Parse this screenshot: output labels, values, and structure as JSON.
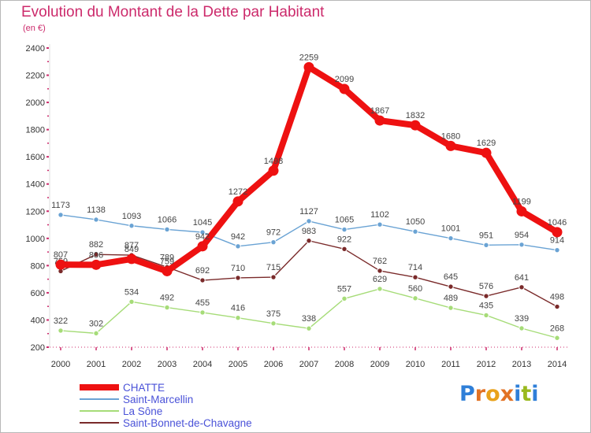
{
  "title": "Evolution du Montant de la Dette par Habitant",
  "subtitle": "(en €)",
  "brand": {
    "letters": [
      "P",
      "r",
      "o",
      "x",
      "i",
      "t",
      "i"
    ],
    "colors": [
      "#2f7fd8",
      "#e27224",
      "#e9a21b",
      "#e27224",
      "#2f7fd8",
      "#9ab91e",
      "#2f7fd8"
    ]
  },
  "chart_data": {
    "type": "line",
    "x": [
      "2000",
      "2001",
      "2002",
      "2003",
      "2004",
      "2005",
      "2006",
      "2007",
      "2008",
      "2009",
      "2010",
      "2011",
      "2012",
      "2013",
      "2014"
    ],
    "ylim": [
      200,
      2400
    ],
    "yticks": [
      "200",
      "400",
      "600",
      "800",
      "1000",
      "1200",
      "1400",
      "1600",
      "1800",
      "2000",
      "2200",
      "2400"
    ],
    "grid": false,
    "legend_position": "bottom-left",
    "series": [
      {
        "name": "CHATTE",
        "color": "#ee1111",
        "labels": [
          "807",
          "806",
          "849",
          "759",
          "942",
          "1272",
          "1498",
          "2259",
          "2099",
          "1867",
          "1832",
          "1680",
          "1629",
          "1199",
          "1046"
        ],
        "values": [
          807,
          806,
          849,
          759,
          942,
          1272,
          1498,
          2259,
          2099,
          1867,
          1832,
          1680,
          1629,
          1199,
          1046
        ]
      },
      {
        "name": "Saint-Marcellin",
        "color": "#6aa3d4",
        "labels": [
          "1173",
          "1138",
          "1093",
          "1066",
          "1045",
          "942",
          "972",
          "1127",
          "1065",
          "1102",
          "1050",
          "1001",
          "951",
          "954",
          "914"
        ],
        "values": [
          1173,
          1138,
          1093,
          1066,
          1045,
          942,
          972,
          1127,
          1065,
          1102,
          1050,
          1001,
          951,
          954,
          914
        ]
      },
      {
        "name": "La Sône",
        "color": "#a6dc78",
        "labels": [
          "322",
          "302",
          "534",
          "492",
          "455",
          "416",
          "375",
          "338",
          "557",
          "629",
          "560",
          "489",
          "435",
          "339",
          "268"
        ],
        "values": [
          322,
          302,
          534,
          492,
          455,
          416,
          375,
          338,
          557,
          629,
          560,
          489,
          435,
          339,
          268
        ]
      },
      {
        "name": "Saint-Bonnet-de-Chavagne",
        "color": "#7a2a2a",
        "labels": [
          "759",
          "882",
          "877",
          "789",
          "692",
          "710",
          "715",
          "983",
          "922",
          "762",
          "714",
          "645",
          "576",
          "641",
          "498"
        ],
        "values": [
          759,
          882,
          877,
          789,
          692,
          710,
          715,
          983,
          922,
          762,
          714,
          645,
          576,
          641,
          498
        ]
      }
    ]
  }
}
